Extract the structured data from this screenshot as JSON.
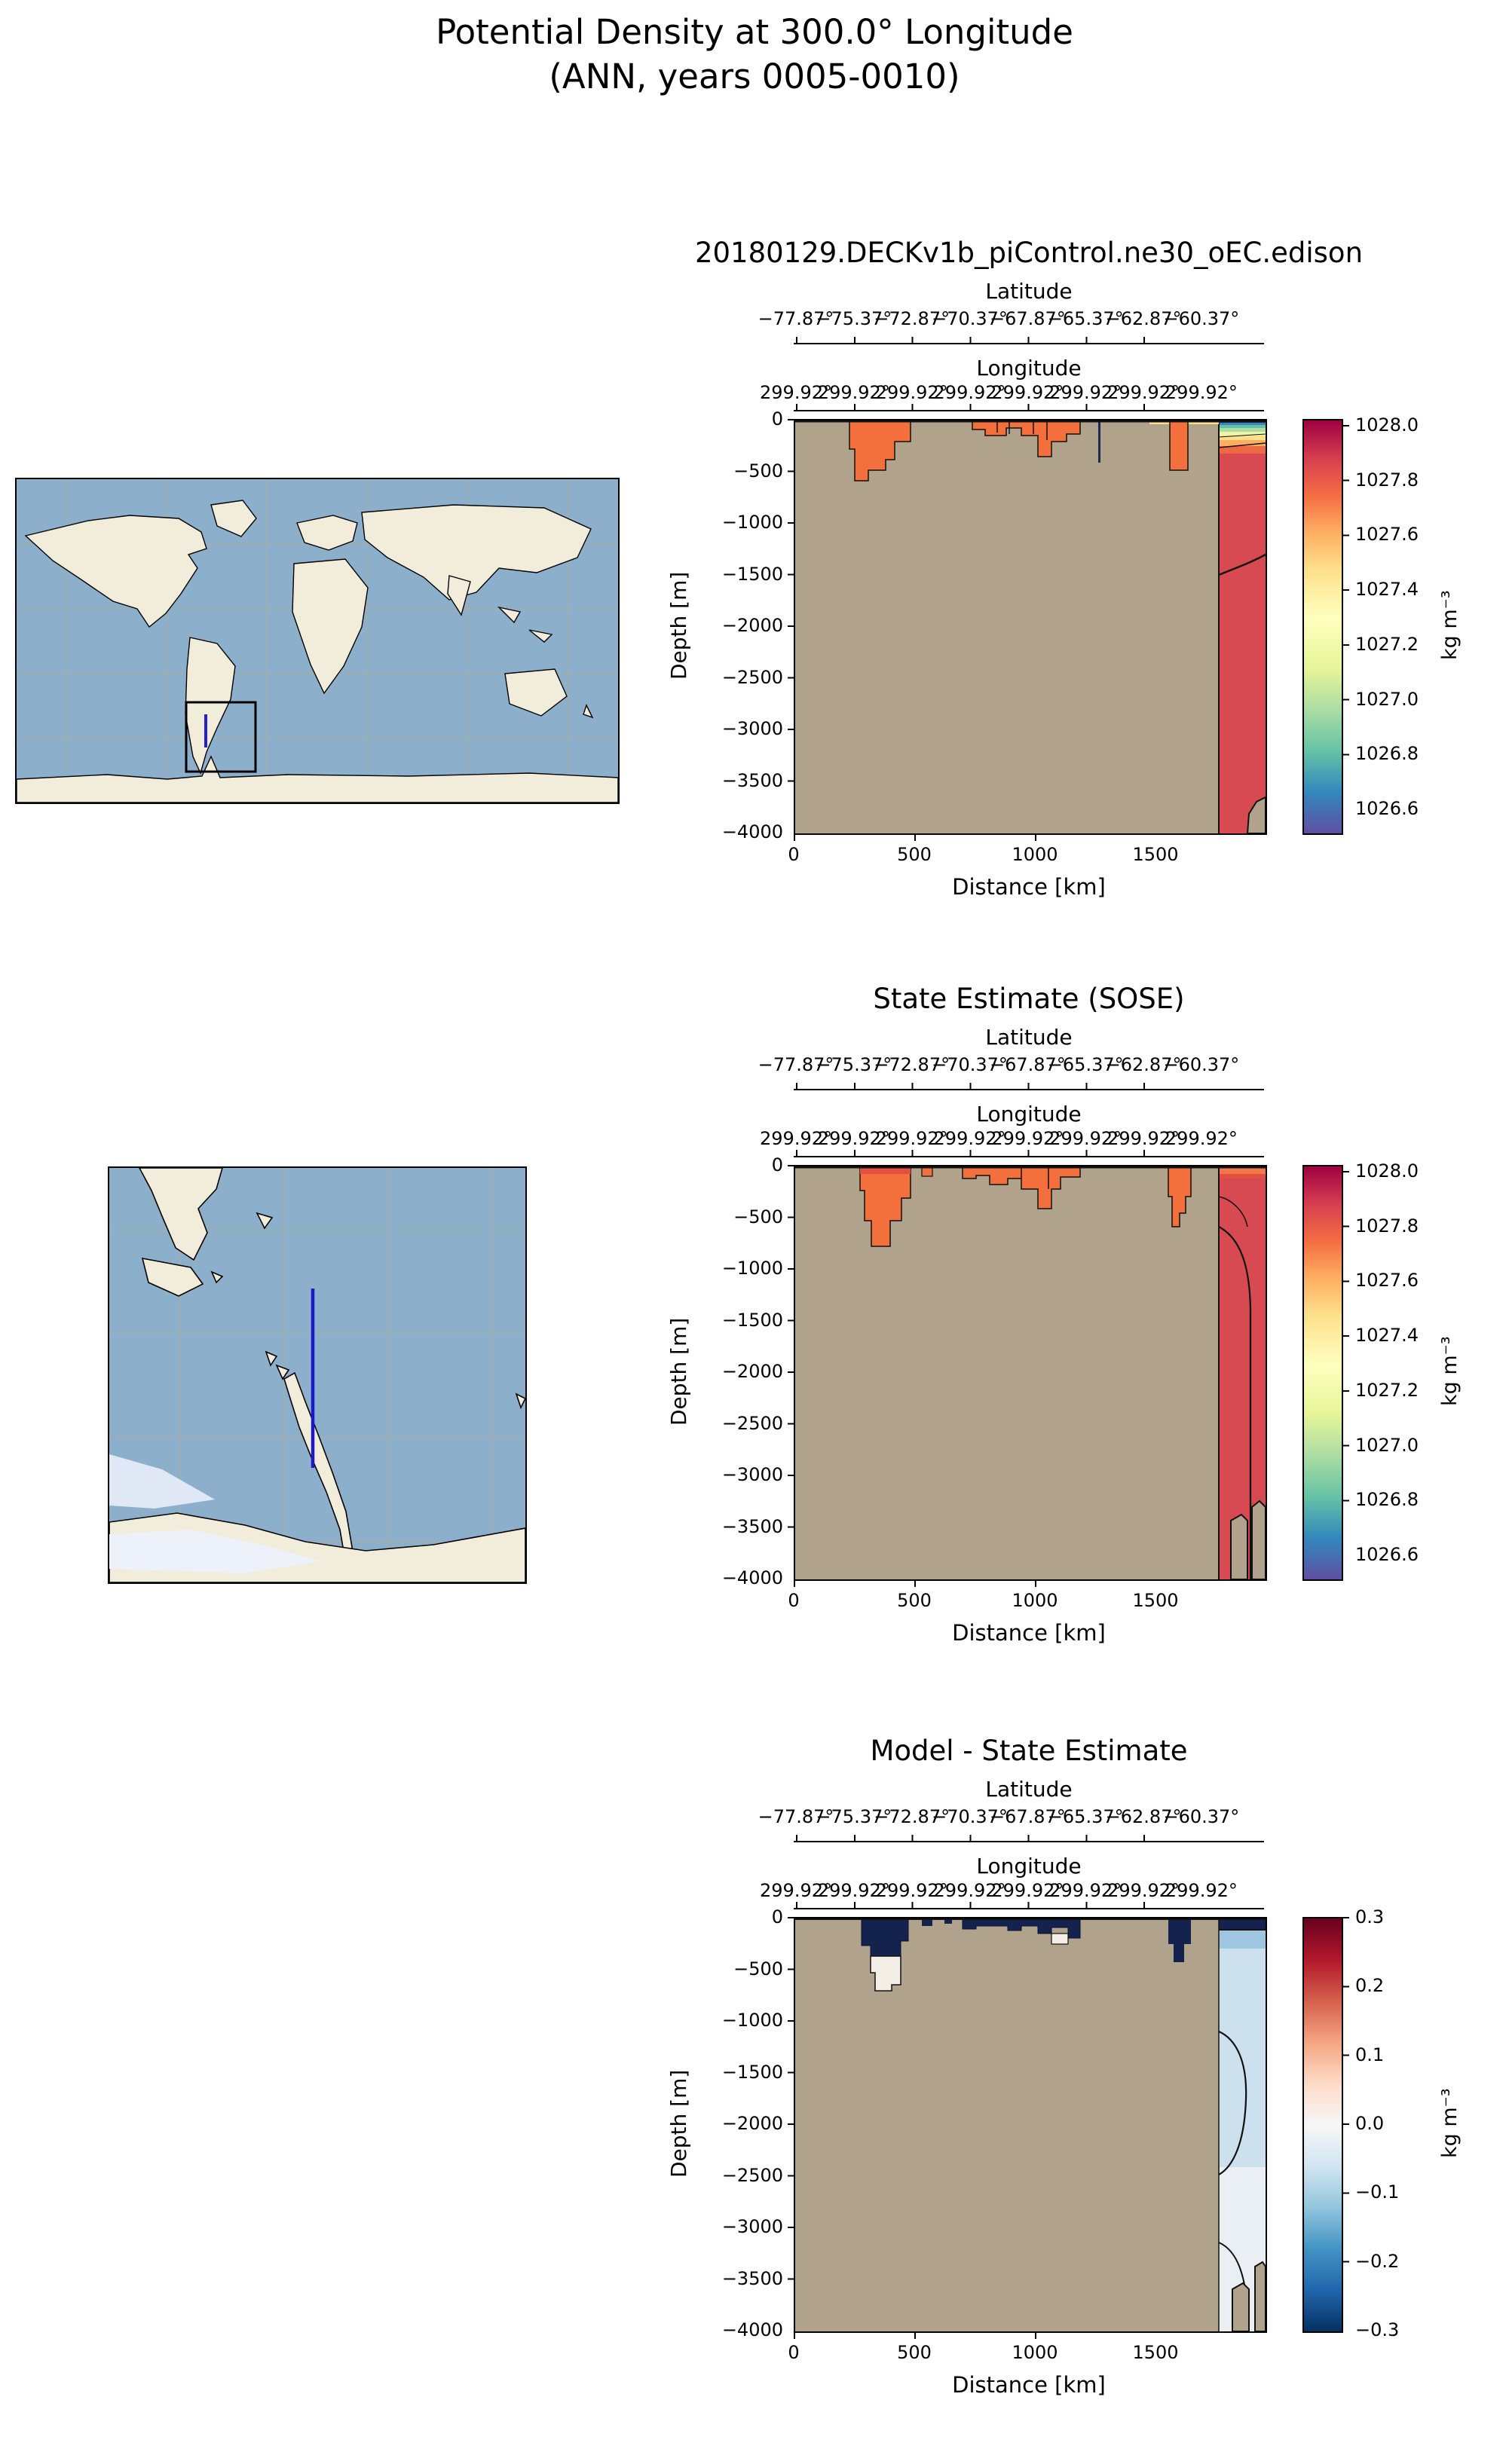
{
  "figure": {
    "title_line1": "Potential Density at 300.0° Longitude",
    "title_line2": "(ANN, years 0005-0010)"
  },
  "shared_axes": {
    "latitude_label": "Latitude",
    "latitude_ticks": [
      "−77.87°",
      "−75.37°",
      "−72.87°",
      "−70.37°",
      "−67.87°",
      "−65.37°",
      "−62.87°",
      "−60.37°"
    ],
    "longitude_label": "Longitude",
    "longitude_ticks": [
      "299.92°",
      "299.92°",
      "299.92°",
      "299.92°",
      "299.92°",
      "299.92°",
      "299.92°",
      "299.92°"
    ],
    "depth_label": "Depth [m]",
    "depth_ticks": [
      "0",
      "−500",
      "−1000",
      "−1500",
      "−2000",
      "−2500",
      "−3000",
      "−3500",
      "−4000"
    ],
    "distance_label": "Distance [km]",
    "distance_ticks": [
      "0",
      "500",
      "1000",
      "1500"
    ],
    "colorbar_unit": "kg m⁻³"
  },
  "panels": [
    {
      "id": "model",
      "title": "20180129.DECKv1b_piControl.ne30_oEC.edison",
      "colorbar_ticks": [
        "1028.0",
        "1027.8",
        "1027.6",
        "1027.4",
        "1027.2",
        "1027.0",
        "1026.8",
        "1026.6"
      ]
    },
    {
      "id": "sose",
      "title": "State Estimate (SOSE)",
      "colorbar_ticks": [
        "1028.0",
        "1027.8",
        "1027.6",
        "1027.4",
        "1027.2",
        "1027.0",
        "1026.8",
        "1026.6"
      ]
    },
    {
      "id": "diff",
      "title": "Model - State Estimate",
      "colorbar_ticks": [
        "0.3",
        "0.2",
        "0.1",
        "0.0",
        "−0.1",
        "−0.2",
        "−0.3"
      ]
    }
  ],
  "maps": {
    "world": {
      "role": "locator map with black selection box and blue transect line",
      "box_color": "#000000",
      "transect_color": "#2222cc"
    },
    "regional": {
      "role": "zoomed locator map (Drake Passage / Antarctic Peninsula) with blue transect line",
      "transect_color": "#1a1acc"
    }
  },
  "colors": {
    "masked_topography_tan": "#b1a28b",
    "ocean_blue": "#8cb0cc",
    "land_cream": "#f2ecda",
    "dense_red": "#d84a52",
    "plume_orange": "#f3703d",
    "diff_navy": "#14224e",
    "diff_lightblue": "#cde0ee"
  },
  "chart_data": [
    {
      "type": "heatmap",
      "title": "20180129.DECKv1b_piControl.ne30_oEC.edison",
      "variable": "Potential Density",
      "units": "kg m⁻³",
      "transect_longitude": 300.0,
      "season": "ANN",
      "years": "0005-0010",
      "xlabel": "Distance [km]",
      "xlim": [
        0,
        1950
      ],
      "x_ticks": [
        0,
        500,
        1000,
        1500
      ],
      "ylabel": "Depth [m]",
      "ylim": [
        -4000,
        0
      ],
      "y_ticks": [
        0,
        -500,
        -1000,
        -1500,
        -2000,
        -2500,
        -3000,
        -3500,
        -4000
      ],
      "top_axes": {
        "latitude_ticks": [
          -77.87,
          -75.37,
          -72.87,
          -70.37,
          -67.87,
          -65.37,
          -62.87,
          -60.37
        ],
        "longitude_ticks": [
          299.92,
          299.92,
          299.92,
          299.92,
          299.92,
          299.92,
          299.92,
          299.92
        ]
      },
      "colorbar": {
        "label": "kg m⁻³",
        "vmin": 1026.5,
        "vmax": 1028.05,
        "ticks": [
          1028.0,
          1027.8,
          1027.6,
          1027.4,
          1027.2,
          1027.0,
          1026.8,
          1026.6
        ],
        "colormap": "Spectral_r"
      },
      "features": [
        {
          "region": "most of section (shelf / masked topography)",
          "value": null,
          "note": "no data, tan mask"
        },
        {
          "region": "surface plume 200-450 km, 0 to -500 m",
          "value": 1027.75
        },
        {
          "region": "surface band 700-1250 km, 0 to -300 m",
          "value": 1027.75
        },
        {
          "region": "narrow column ~1600 km, 0 to -450 m",
          "value": 1027.75
        },
        {
          "region": "open-ocean column 1800-1950 km, full depth",
          "value": 1027.85
        },
        {
          "region": "stratified surface layers 1800-1950 km, 0 to -250 m",
          "value": "1026.5 to 1027.6 increasing with depth"
        }
      ]
    },
    {
      "type": "heatmap",
      "title": "State Estimate (SOSE)",
      "variable": "Potential Density",
      "units": "kg m⁻³",
      "xlabel": "Distance [km]",
      "xlim": [
        0,
        1950
      ],
      "x_ticks": [
        0,
        500,
        1000,
        1500
      ],
      "ylabel": "Depth [m]",
      "ylim": [
        -4000,
        0
      ],
      "y_ticks": [
        0,
        -500,
        -1000,
        -1500,
        -2000,
        -2500,
        -3000,
        -3500,
        -4000
      ],
      "colorbar": {
        "label": "kg m⁻³",
        "vmin": 1026.5,
        "vmax": 1028.05,
        "ticks": [
          1028.0,
          1027.8,
          1027.6,
          1027.4,
          1027.2,
          1027.0,
          1026.8,
          1026.6
        ],
        "colormap": "Spectral_r"
      },
      "features": [
        {
          "region": "surface plume 250-450 km, 0 to -900 m",
          "value": 1027.75
        },
        {
          "region": "surface band 700-1250 km, 0 to -200 m",
          "value": 1027.75
        },
        {
          "region": "column 1550-1650 km, 0 to -550 m",
          "value": 1027.75
        },
        {
          "region": "open-ocean column 1800-1950 km, full depth",
          "value": 1027.85
        },
        {
          "region": "bottom-right bathymetry bumps",
          "value": null,
          "note": "no data, tan mask"
        }
      ]
    },
    {
      "type": "heatmap",
      "title": "Model - State Estimate",
      "variable": "Potential Density difference",
      "units": "kg m⁻³",
      "xlabel": "Distance [km]",
      "xlim": [
        0,
        1950
      ],
      "x_ticks": [
        0,
        500,
        1000,
        1500
      ],
      "ylabel": "Depth [m]",
      "ylim": [
        -4000,
        0
      ],
      "y_ticks": [
        0,
        -500,
        -1000,
        -1500,
        -2000,
        -2500,
        -3000,
        -3500,
        -4000
      ],
      "colorbar": {
        "label": "kg m⁻³",
        "vmin": -0.3,
        "vmax": 0.3,
        "ticks": [
          0.3,
          0.2,
          0.1,
          0.0,
          -0.1,
          -0.2,
          -0.3
        ],
        "colormap": "RdBu_r"
      },
      "features": [
        {
          "region": "surface patches 150-1250 km",
          "value": -0.3
        },
        {
          "region": "patch ~400 km, -350 to -600 m",
          "value": 0.0
        },
        {
          "region": "open-ocean column 1800-1950 km, surface",
          "value": -0.3
        },
        {
          "region": "open-ocean column upper 1000 m",
          "value": -0.1
        },
        {
          "region": "open-ocean column deep",
          "value": -0.05
        }
      ]
    }
  ]
}
